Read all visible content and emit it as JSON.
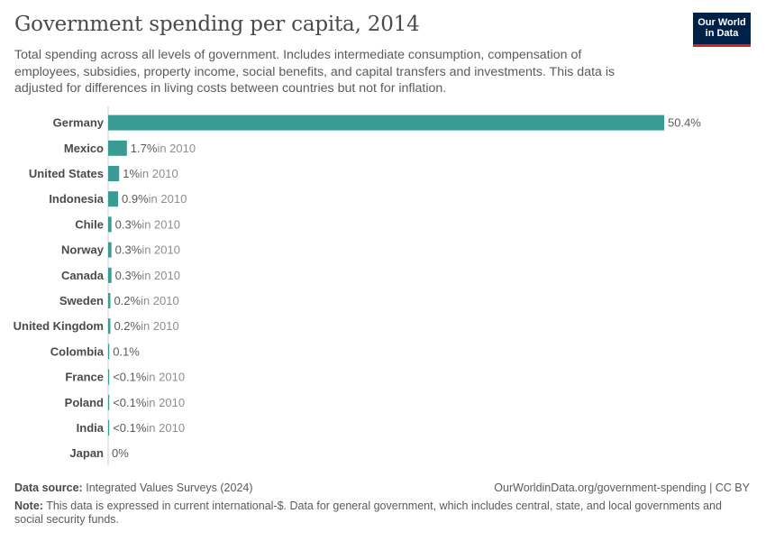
{
  "header": {
    "title": "Government spending per capita, 2014",
    "subtitle": "Total spending across all levels of government. Includes intermediate consumption, compensation of employees, subsidies, property income, social benefits, and capital transfers and investments. This data is adjusted for differences in living costs between countries but not for inflation."
  },
  "logo": {
    "line1": "Our World",
    "line2": "in Data"
  },
  "colors": {
    "bar": "#3a9a94",
    "axis": "#cccccc",
    "label": "#4a4a4a",
    "value": "#5b5b5b",
    "note": "#8e8e8e"
  },
  "chart_data": {
    "type": "bar",
    "orientation": "horizontal",
    "title": "Government spending per capita, 2014",
    "categories": [
      "Germany",
      "Mexico",
      "United States",
      "Indonesia",
      "Chile",
      "Norway",
      "Canada",
      "Sweden",
      "United Kingdom",
      "Colombia",
      "France",
      "Poland",
      "India",
      "Japan"
    ],
    "values": [
      50.4,
      1.7,
      1.0,
      0.9,
      0.3,
      0.3,
      0.3,
      0.2,
      0.2,
      0.1,
      0.05,
      0.05,
      0.05,
      0
    ],
    "value_labels": [
      "50.4%",
      "1.7%",
      "1%",
      "0.9%",
      "0.3%",
      "0.3%",
      "0.3%",
      "0.2%",
      "0.2%",
      "0.1%",
      "<0.1%",
      "<0.1%",
      "<0.1%",
      "0%"
    ],
    "year_notes": [
      "",
      "in 2010",
      "in 2010",
      "in 2010",
      "in 2010",
      "in 2010",
      "in 2010",
      "in 2010",
      "in 2010",
      "",
      "in 2010",
      "in 2010",
      "in 2010",
      ""
    ],
    "xlim": [
      0,
      50.4
    ],
    "grid": false,
    "legend": "none"
  },
  "footer": {
    "source_label": "Data source:",
    "source_value": "Integrated Values Surveys (2024)",
    "url": "OurWorldinData.org/government-spending | CC BY",
    "note_label": "Note:",
    "note_text": "This data is expressed in current international-$. Data for general government, which includes central, state, and local governments and social security funds."
  }
}
